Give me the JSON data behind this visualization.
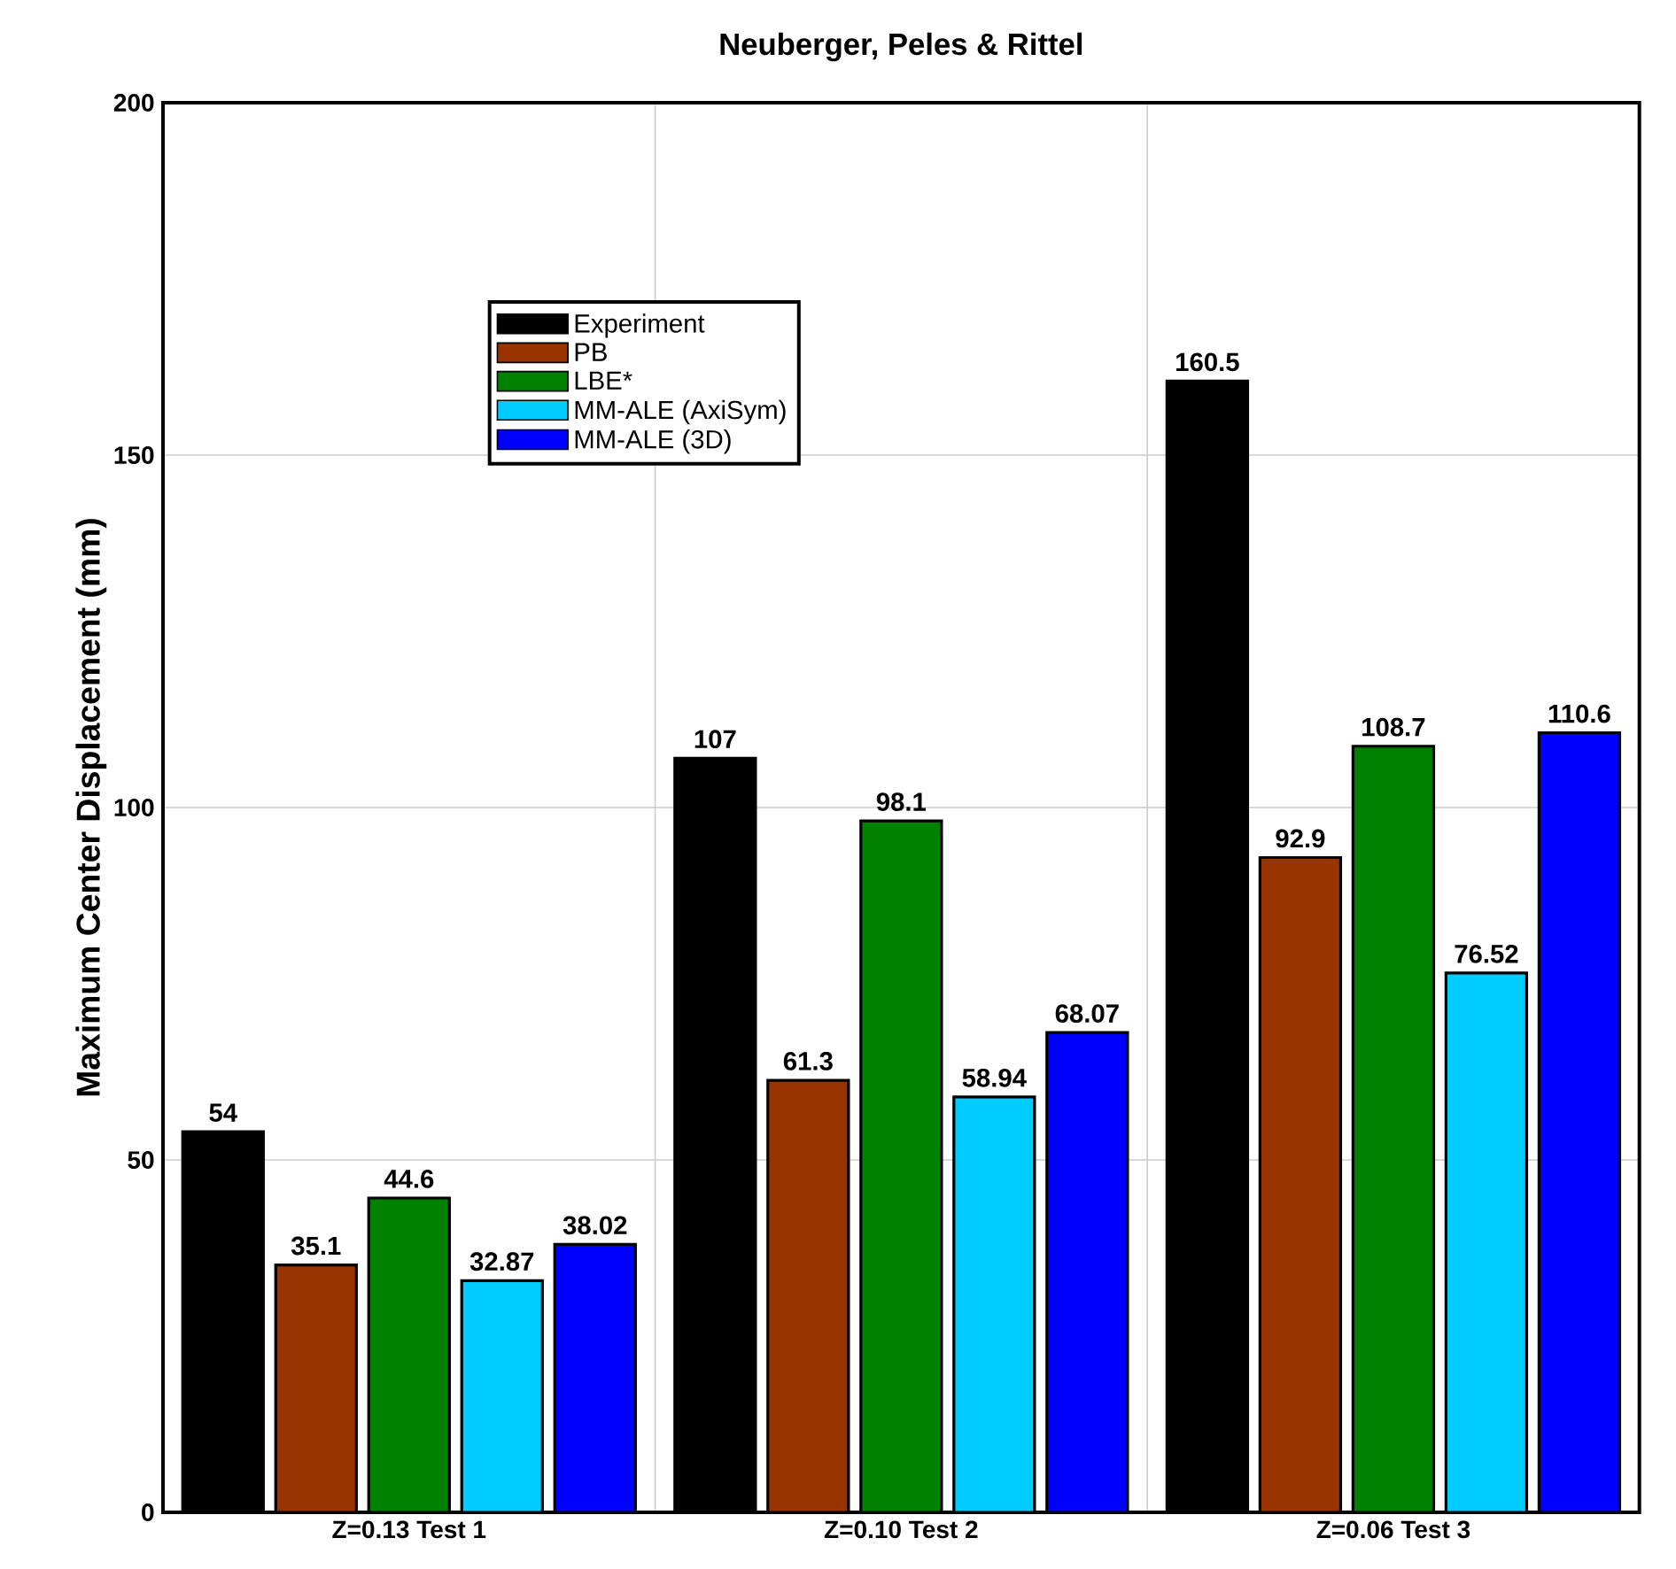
{
  "chart_data": {
    "type": "bar",
    "title": "Neuberger, Peles & Rittel",
    "ylabel": "Maximum Center Displacement (mm)",
    "categories": [
      "Z=0.13 Test 1",
      "Z=0.10 Test 2",
      "Z=0.06 Test 3"
    ],
    "series": [
      {
        "name": "Experiment",
        "color": "#000000",
        "values": [
          54,
          107,
          160.5
        ]
      },
      {
        "name": "PB",
        "color": "#993300",
        "values": [
          35.1,
          61.3,
          92.9
        ]
      },
      {
        "name": "LBE*",
        "color": "#008000",
        "values": [
          44.6,
          98.1,
          108.7
        ]
      },
      {
        "name": "MM-ALE (AxiSym)",
        "color": "#00ccff",
        "values": [
          32.87,
          58.94,
          76.52
        ]
      },
      {
        "name": "MM-ALE (3D)",
        "color": "#0000ff",
        "values": [
          38.02,
          68.07,
          110.6
        ]
      }
    ],
    "ylim": [
      0,
      200
    ],
    "yticks": [
      0,
      50,
      100,
      150,
      200
    ],
    "grid": true,
    "legend": "top left",
    "data_labels": true
  }
}
